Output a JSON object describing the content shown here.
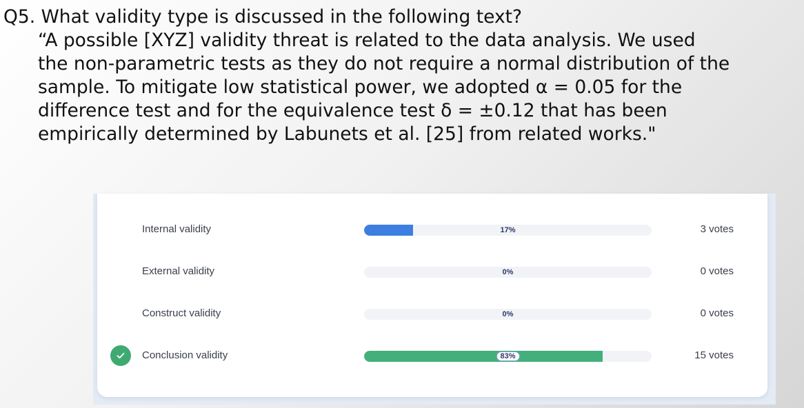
{
  "question": {
    "title": "Q5. What validity type is discussed in the following text?",
    "quote_lines": [
      "“A possible [XYZ] validity threat is related to the data analysis. We used",
      "the non-parametric tests as they do not require a normal distribution of the",
      "sample. To mitigate low statistical power, we adopted α = 0.05 for the",
      "difference test and for the equivalence test δ = ±0.12 that has been",
      "empirically determined by Labunets et al. [25] from related works.\""
    ]
  },
  "poll": {
    "options": [
      {
        "label": "Internal validity",
        "percent": 17,
        "percent_label": "17%",
        "votes_label": "3 votes",
        "correct": false,
        "bar_color": "#3d7fe0"
      },
      {
        "label": "External validity",
        "percent": 0,
        "percent_label": "0%",
        "votes_label": "0 votes",
        "correct": false,
        "bar_color": "#3d7fe0"
      },
      {
        "label": "Construct validity",
        "percent": 0,
        "percent_label": "0%",
        "votes_label": "0 votes",
        "correct": false,
        "bar_color": "#3d7fe0"
      },
      {
        "label": "Conclusion validity",
        "percent": 83,
        "percent_label": "83%",
        "votes_label": "15 votes",
        "correct": true,
        "bar_color": "#43b07c"
      }
    ],
    "correct_icon": "check-icon"
  },
  "colors": {
    "correct_green": "#3eaa72",
    "track": "#f1f3f7",
    "text": "#3a3f4a"
  }
}
